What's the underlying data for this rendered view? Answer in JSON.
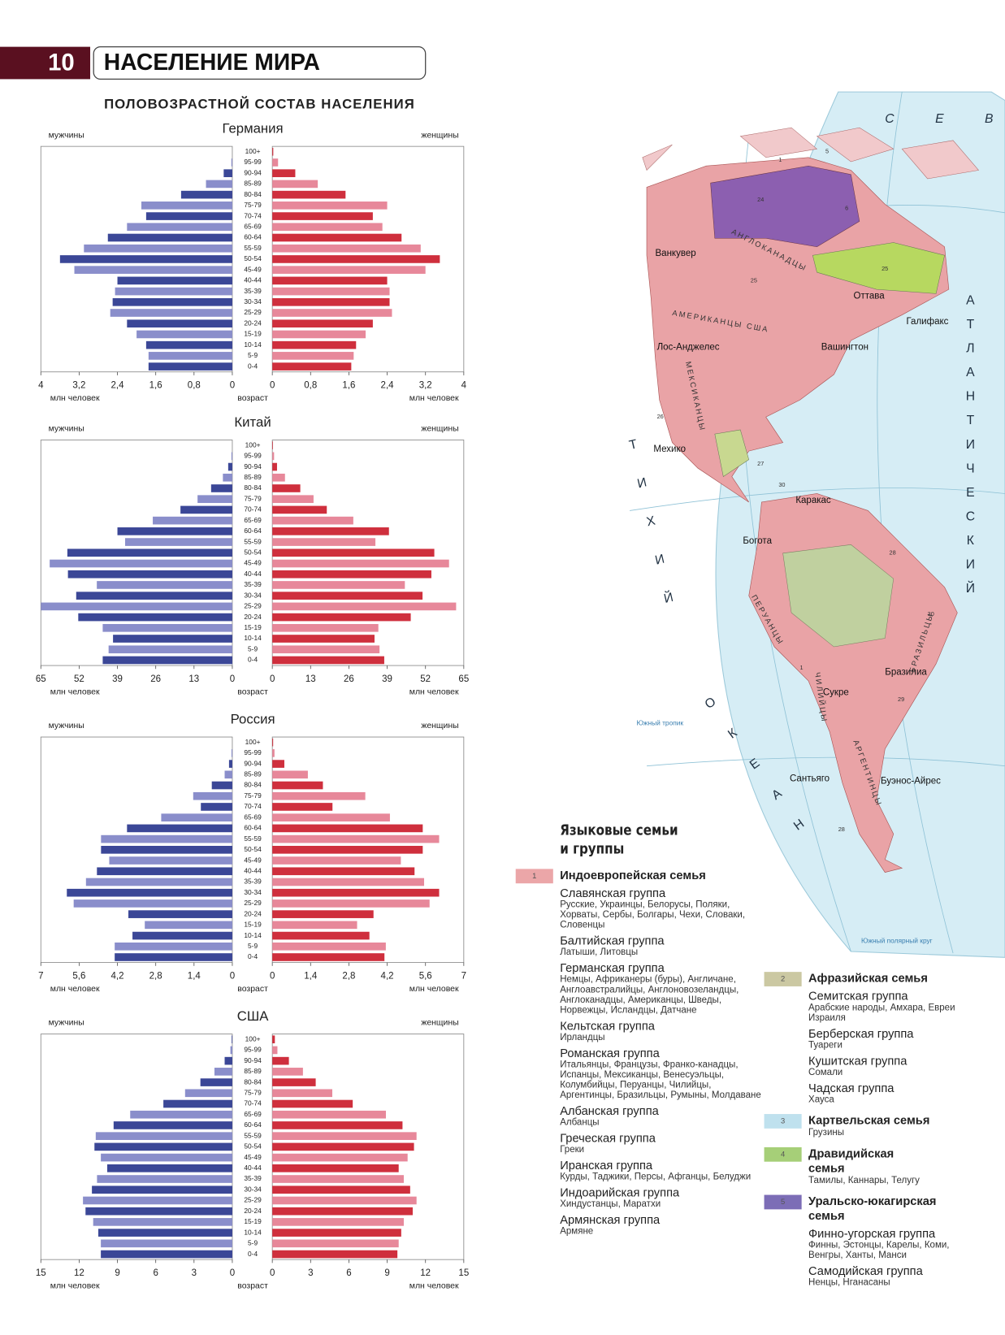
{
  "header": {
    "number": "10",
    "title": "НАСЕЛЕНИЕ МИРА",
    "subtitle": "ПОЛОВОЗРАСТНОЙ СОСТАВ НАСЕЛЕНИЯ"
  },
  "chart_data": [
    {
      "type": "pyramid",
      "title": "Германия",
      "category_label": "возраст",
      "x_label": "млн человек",
      "categories": [
        "100+",
        "95-99",
        "90-94",
        "85-89",
        "80-84",
        "75-79",
        "70-74",
        "65-69",
        "60-64",
        "55-59",
        "50-54",
        "45-49",
        "40-44",
        "35-39",
        "30-34",
        "25-29",
        "20-24",
        "15-19",
        "10-14",
        "5-9",
        "0-4"
      ],
      "xlim": [
        0,
        4
      ],
      "xticks": [
        0,
        {
          "value": 0.8,
          "label": "0,8"
        },
        {
          "value": 1.6,
          "label": "1,6"
        },
        {
          "value": 2.4,
          "label": "2,4"
        },
        {
          "value": 3.2,
          "label": "3,2"
        },
        4
      ],
      "series": [
        {
          "name": "мужчины",
          "colors": [
            "#3b4797",
            "#8a8ecb"
          ],
          "values": [
            0,
            0.02,
            0.18,
            0.55,
            1.07,
            1.9,
            1.8,
            2.2,
            2.6,
            3.1,
            3.6,
            3.3,
            2.4,
            2.45,
            2.5,
            2.55,
            2.2,
            2.0,
            1.8,
            1.75,
            1.75
          ]
        },
        {
          "name": "женщины",
          "colors": [
            "#cf2f3d",
            "#e7889a"
          ],
          "values": [
            0.02,
            0.12,
            0.48,
            0.95,
            1.53,
            2.4,
            2.1,
            2.3,
            2.7,
            3.1,
            3.5,
            3.2,
            2.4,
            2.45,
            2.45,
            2.5,
            2.1,
            1.95,
            1.75,
            1.7,
            1.65
          ]
        }
      ]
    },
    {
      "type": "pyramid",
      "title": "Китай",
      "category_label": "возраст",
      "x_label": "млн человек",
      "categories": [
        "100+",
        "95-99",
        "90-94",
        "85-89",
        "80-84",
        "75-79",
        "70-74",
        "65-69",
        "60-64",
        "55-59",
        "50-54",
        "45-49",
        "40-44",
        "35-39",
        "30-34",
        "25-29",
        "20-24",
        "15-19",
        "10-14",
        "5-9",
        "0-4"
      ],
      "xlim": [
        0,
        65
      ],
      "xticks": [
        0,
        13,
        26,
        39,
        52,
        65
      ],
      "series": [
        {
          "name": "мужчины",
          "colors": [
            "#3b4797",
            "#8a8ecb"
          ],
          "values": [
            0,
            0.3,
            1.4,
            3.2,
            7.2,
            11.8,
            17.6,
            27,
            39,
            36.4,
            56,
            62,
            55.8,
            46,
            53,
            65,
            52.3,
            44,
            40.5,
            42,
            44
          ]
        },
        {
          "name": "женщины",
          "colors": [
            "#cf2f3d",
            "#e7889a"
          ],
          "values": [
            0.2,
            0.6,
            1.6,
            4.3,
            9.5,
            14,
            18.5,
            27.5,
            39.6,
            35,
            55,
            60,
            54,
            45,
            51,
            62.4,
            47,
            36,
            34.7,
            36.4,
            38
          ]
        }
      ]
    },
    {
      "type": "pyramid",
      "title": "Россия",
      "category_label": "возраст",
      "x_label": "млн человек",
      "categories": [
        "100+",
        "95-99",
        "90-94",
        "85-89",
        "80-84",
        "75-79",
        "70-74",
        "65-69",
        "60-64",
        "55-59",
        "50-54",
        "45-49",
        "40-44",
        "35-39",
        "30-34",
        "25-29",
        "20-24",
        "15-19",
        "10-14",
        "5-9",
        "0-4"
      ],
      "xlim": [
        0,
        7
      ],
      "xticks": [
        0,
        {
          "value": 1.4,
          "label": "1,4"
        },
        {
          "value": 2.8,
          "label": "2,8"
        },
        {
          "value": 4.2,
          "label": "4,2"
        },
        {
          "value": 5.6,
          "label": "5,6"
        },
        7
      ],
      "series": [
        {
          "name": "мужчины",
          "colors": [
            "#3b4797",
            "#8a8ecb"
          ],
          "values": [
            0,
            0.03,
            0.12,
            0.28,
            0.75,
            1.43,
            1.15,
            2.6,
            3.85,
            4.8,
            4.8,
            4.5,
            4.95,
            5.35,
            6.05,
            5.8,
            3.8,
            3.2,
            3.65,
            4.3,
            4.3
          ]
        },
        {
          "name": "женщины",
          "colors": [
            "#cf2f3d",
            "#e7889a"
          ],
          "values": [
            0.03,
            0.08,
            0.44,
            1.3,
            1.85,
            3.4,
            2.2,
            4.3,
            5.5,
            6.1,
            5.5,
            4.7,
            5.2,
            5.55,
            6.1,
            5.75,
            3.7,
            3.1,
            3.55,
            4.15,
            4.1
          ]
        }
      ]
    },
    {
      "type": "pyramid",
      "title": "США",
      "category_label": "возраст",
      "x_label": "млн человек",
      "categories": [
        "100+",
        "95-99",
        "90-94",
        "85-89",
        "80-84",
        "75-79",
        "70-74",
        "65-69",
        "60-64",
        "55-59",
        "50-54",
        "45-49",
        "40-44",
        "35-39",
        "30-34",
        "25-29",
        "20-24",
        "15-19",
        "10-14",
        "5-9",
        "0-4"
      ],
      "xlim": [
        0,
        15
      ],
      "xticks": [
        0,
        3,
        6,
        9,
        12,
        15
      ],
      "series": [
        {
          "name": "мужчины",
          "colors": [
            "#3b4797",
            "#8a8ecb"
          ],
          "values": [
            0.05,
            0.15,
            0.6,
            1.4,
            2.5,
            3.7,
            5.4,
            8,
            9.3,
            10.7,
            10.8,
            10.3,
            9.8,
            10.6,
            11,
            11.7,
            11.5,
            10.9,
            10.5,
            10.3,
            10.3
          ]
        },
        {
          "name": "женщины",
          "colors": [
            "#cf2f3d",
            "#e7889a"
          ],
          "values": [
            0.2,
            0.4,
            1.3,
            2.4,
            3.4,
            4.7,
            6.3,
            8.9,
            10.2,
            11.3,
            11.1,
            10.6,
            9.9,
            10.3,
            10.8,
            11.3,
            11,
            10.3,
            10.1,
            9.9,
            9.8
          ]
        }
      ]
    }
  ],
  "map": {
    "oceans": [
      "С Е В Е",
      "АТЛАНТИЧЕСКИЙ",
      "ТИХИЙ",
      "ОКЕАН"
    ],
    "cities": [
      "Ванкувер",
      "Оттава",
      "Галифакс",
      "Вашингтон",
      "Лос-Анджелес",
      "Мехико",
      "Каракас",
      "Богота",
      "Бразилиа",
      "Сукре",
      "Сантьяго",
      "Буэнос-Айрес"
    ],
    "peoples": [
      "АНГЛОКАНАДЦЫ",
      "АМЕРИКАНЦЫ США",
      "МЕКСИКАНЦЫ",
      "ПЕРУАНЦЫ",
      "ЧИЛИЙЦЫ",
      "АРГЕНТИНЦЫ",
      "БРАЗИЛЬЦЫ"
    ],
    "lines": [
      "Южный тропик",
      "Южный полярный круг"
    ],
    "codes": [
      "24",
      "1",
      "5",
      "6",
      "25",
      "25",
      "26",
      "27",
      "28",
      "29",
      "30",
      "30",
      "28",
      "1"
    ]
  },
  "legend": {
    "title": "Языковые семьи и группы",
    "families": [
      {
        "number": "1",
        "name": "Индоевропейская семья",
        "color": "#eba6a8",
        "groups": [
          {
            "name": "Славянская группа",
            "peoples": "Русские, Украинцы, Белорусы, Поляки, Хорваты, Сербы, Болгары, Чехи, Словаки, Словенцы"
          },
          {
            "name": "Балтийская группа",
            "peoples": "Латыши, Литовцы"
          },
          {
            "name": "Германская группа",
            "peoples": "Немцы, Африканеры (буры), Англичане, Англоавстралийцы, Англоновозеландцы, Англоканадцы, Американцы, Шведы, Норвежцы, Исландцы, Датчане"
          },
          {
            "name": "Кельтская группа",
            "peoples": "Ирландцы"
          },
          {
            "name": "Романская группа",
            "peoples": "Итальянцы, Французы, Франко-канадцы, Испанцы, Мексиканцы, Венесуэльцы, Колумбийцы, Перуанцы, Чилийцы, Аргентинцы, Бразильцы, Румыны, Молдаване"
          },
          {
            "name": "Албанская группа",
            "peoples": "Албанцы"
          },
          {
            "name": "Греческая группа",
            "peoples": "Греки"
          },
          {
            "name": "Иранская группа",
            "peoples": "Курды, Таджики, Персы, Афганцы, Белуджи"
          },
          {
            "name": "Индоарийская группа",
            "peoples": "Хиндустанцы, Маратхи"
          },
          {
            "name": "Армянская группа",
            "peoples": "Армяне"
          }
        ]
      },
      {
        "number": "2",
        "name": "Афразийская семья",
        "color": "#cbc8a2",
        "groups": [
          {
            "name": "Семитская группа",
            "peoples": "Арабские народы, Амхара, Евреи Израиля"
          },
          {
            "name": "Берберская группа",
            "peoples": "Туареги"
          },
          {
            "name": "Кушитская группа",
            "peoples": "Сомали"
          },
          {
            "name": "Чадская группа",
            "peoples": "Хауса"
          }
        ]
      },
      {
        "number": "3",
        "name": "Картвельская семья",
        "color": "#bfe1ee",
        "peoples": "Грузины"
      },
      {
        "number": "4",
        "name": "Дравидийская семья",
        "color": "#a6cf78",
        "peoples": "Тамилы, Каннары, Телугу"
      },
      {
        "number": "5",
        "name": "Уральско-юкагирская семья",
        "color": "#7c6db6",
        "groups": [
          {
            "name": "Финно-угорская группа",
            "peoples": "Финны, Эстонцы, Карелы, Коми, Венгры, Ханты, Манси"
          },
          {
            "name": "Самодийская группа",
            "peoples": "Ненцы, Нганасаны"
          }
        ]
      }
    ]
  }
}
